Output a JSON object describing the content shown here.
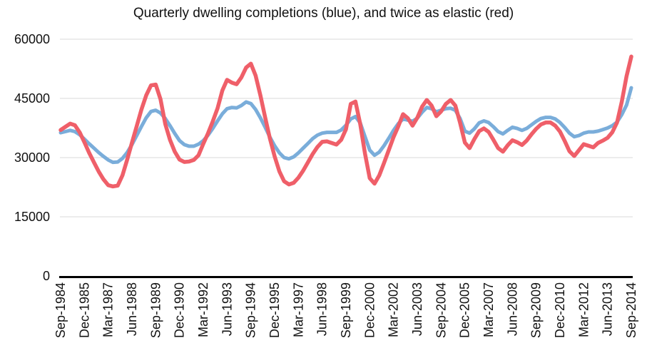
{
  "page": {
    "title": "Quarterly dwelling completions (blue), and twice as elastic (red)"
  },
  "colors": {
    "background": "#ffffff",
    "gridline": "#d9d9d9",
    "axis": "#000000",
    "text": "#111111",
    "series_blue": "#7aadda",
    "series_red": "#ef5f69"
  },
  "chart_data": {
    "type": "line",
    "title": "Quarterly dwelling completions (blue), and twice as elastic (red)",
    "xlabel": "",
    "ylabel": "",
    "ylim": [
      0,
      60000
    ],
    "y_ticks": [
      0,
      15000,
      30000,
      45000,
      60000
    ],
    "y_tick_labels": [
      "0",
      "15000",
      "30000",
      "45000",
      "60000"
    ],
    "grid": "horizontal-only",
    "legend_position": "none (encoded in title)",
    "x_tick_every_n_points": 5,
    "x_tick_labels": [
      "Sep-1984",
      "Dec-1985",
      "Mar-1987",
      "Jun-1988",
      "Sep-1989",
      "Dec-1990",
      "Mar-1992",
      "Jun-1993",
      "Sep-1994",
      "Dec-1995",
      "Mar-1997",
      "Jun-1998",
      "Sep-1999",
      "Dec-2000",
      "Mar-2002",
      "Jun-2003",
      "Sep-2004",
      "Dec-2005",
      "Mar-2007",
      "Jun-2008",
      "Sep-2009",
      "Dec-2010",
      "Mar-2012",
      "Jun-2013",
      "Sep-2014"
    ],
    "x_points_total": 121,
    "series": [
      {
        "name": "Quarterly dwelling completions",
        "color": "#7aadda",
        "stroke_width": 5,
        "values": [
          36300,
          36600,
          36900,
          36600,
          35800,
          34700,
          33500,
          32400,
          31300,
          30300,
          29400,
          28800,
          28900,
          29800,
          31300,
          33300,
          35600,
          37900,
          40100,
          41700,
          42000,
          41300,
          39900,
          38100,
          36100,
          34300,
          33300,
          32900,
          32900,
          33400,
          34300,
          35700,
          37400,
          39300,
          41100,
          42400,
          42700,
          42600,
          43200,
          44100,
          43700,
          42200,
          40100,
          37700,
          35200,
          33000,
          31200,
          30000,
          29700,
          30200,
          31200,
          32400,
          33600,
          34800,
          35700,
          36200,
          36400,
          36400,
          36400,
          37000,
          38200,
          39800,
          40400,
          38800,
          35300,
          31900,
          30600,
          31400,
          33000,
          34900,
          36900,
          38600,
          39800,
          39500,
          39200,
          40000,
          41500,
          42700,
          42400,
          41600,
          42000,
          42400,
          42500,
          42000,
          39900,
          36700,
          36200,
          37300,
          38800,
          39300,
          38900,
          37800,
          36600,
          36000,
          36900,
          37700,
          37400,
          36900,
          37400,
          38300,
          39200,
          39900,
          40200,
          40200,
          39800,
          38900,
          37600,
          36200,
          35300,
          35600,
          36200,
          36500,
          36500,
          36700,
          37100,
          37500,
          38100,
          39000,
          40900,
          43300,
          47700
        ]
      },
      {
        "name": "Twice as elastic",
        "color": "#ef5f69",
        "stroke_width": 5.5,
        "values": [
          37000,
          37800,
          38600,
          38200,
          36400,
          33900,
          31200,
          28800,
          26500,
          24500,
          23000,
          22700,
          22900,
          25500,
          29500,
          33800,
          38000,
          42200,
          45800,
          48300,
          48500,
          44800,
          38500,
          34500,
          31500,
          29500,
          28900,
          29000,
          29400,
          30600,
          33500,
          36200,
          39200,
          42500,
          47000,
          49700,
          49000,
          48600,
          50300,
          52800,
          53800,
          50800,
          45800,
          40200,
          34900,
          30300,
          26500,
          24000,
          23200,
          23600,
          24900,
          26700,
          28800,
          30900,
          32700,
          34000,
          34100,
          33700,
          33300,
          34500,
          37200,
          43600,
          44200,
          38500,
          31000,
          24800,
          23400,
          25500,
          28600,
          31900,
          35200,
          37900,
          41000,
          40000,
          38100,
          40100,
          42900,
          44600,
          43200,
          40500,
          41700,
          43600,
          44600,
          43200,
          38800,
          33800,
          32400,
          34700,
          36700,
          37400,
          36500,
          34500,
          32400,
          31500,
          33100,
          34400,
          33900,
          33200,
          34300,
          35900,
          37300,
          38400,
          38900,
          38900,
          38100,
          36600,
          34200,
          31600,
          30400,
          31900,
          33400,
          33000,
          32600,
          33700,
          34300,
          35000,
          36400,
          38900,
          44200,
          50600,
          55600
        ]
      }
    ]
  }
}
